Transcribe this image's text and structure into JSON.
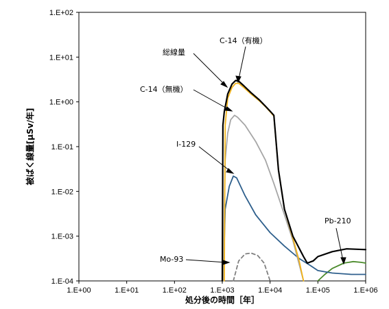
{
  "chart_data": {
    "type": "line",
    "xlabel": "処分後の時間［年］",
    "ylabel": "被ばく線量[μSv/年]",
    "xscale": "log",
    "yscale": "log",
    "xlim": [
      1,
      1000000
    ],
    "ylim": [
      0.0001,
      100
    ],
    "x_tick_labels": [
      "1.E+00",
      "1.E+01",
      "1.E+02",
      "1.E+03",
      "1.E+04",
      "1.E+05",
      "1.E+06"
    ],
    "y_tick_labels": [
      "1.E+02",
      "1.E+01",
      "1.E+00",
      "1.E-01",
      "1.E-02",
      "1.E-03",
      "1.E-04"
    ],
    "grid": false,
    "legend": "none",
    "annotations": [
      "総線量",
      "C-14（有機）",
      "C-14（無機）",
      "I-129",
      "Mo-93",
      "Pb-210"
    ],
    "series": [
      {
        "name": "総線量",
        "color": "#000000",
        "style": "solid",
        "points": [
          [
            1000,
            0.0001
          ],
          [
            1030,
            0.3
          ],
          [
            1100,
            0.6
          ],
          [
            1300,
            1.5
          ],
          [
            1600,
            2.5
          ],
          [
            1900,
            3.0
          ],
          [
            2200,
            2.9
          ],
          [
            2800,
            2.3
          ],
          [
            4000,
            1.6
          ],
          [
            6000,
            1.1
          ],
          [
            8000,
            0.8
          ],
          [
            10000,
            0.62
          ],
          [
            12000,
            0.5
          ],
          [
            15000,
            0.03
          ],
          [
            20000,
            0.004
          ],
          [
            30000,
            0.001
          ],
          [
            50000,
            0.00035
          ],
          [
            60000,
            0.00025
          ],
          [
            80000,
            0.00028
          ],
          [
            100000,
            0.00035
          ],
          [
            200000,
            0.00045
          ],
          [
            400000,
            0.00052
          ],
          [
            1000000,
            0.0005
          ]
        ]
      },
      {
        "name": "C-14（有機）",
        "color": "#f2b31a",
        "style": "solid",
        "points": [
          [
            1100,
            0.0001
          ],
          [
            1150,
            0.3
          ],
          [
            1300,
            1.2
          ],
          [
            1600,
            2.1
          ],
          [
            1900,
            2.6
          ],
          [
            2200,
            2.6
          ],
          [
            2800,
            2.1
          ],
          [
            4000,
            1.5
          ],
          [
            6000,
            1.05
          ],
          [
            8000,
            0.78
          ],
          [
            10000,
            0.6
          ],
          [
            12000,
            0.48
          ],
          [
            15000,
            0.03
          ],
          [
            20000,
            0.004
          ],
          [
            30000,
            0.0009
          ],
          [
            40000,
            0.0003
          ],
          [
            50000,
            0.0001
          ]
        ]
      },
      {
        "name": "C-14（無機）",
        "color": "#a6a6a6",
        "style": "solid",
        "points": [
          [
            1050,
            0.0001
          ],
          [
            1150,
            0.05
          ],
          [
            1300,
            0.2
          ],
          [
            1500,
            0.4
          ],
          [
            1800,
            0.5
          ],
          [
            2100,
            0.45
          ],
          [
            3000,
            0.3
          ],
          [
            5000,
            0.13
          ],
          [
            8000,
            0.05
          ],
          [
            12000,
            0.015
          ],
          [
            20000,
            0.003
          ],
          [
            30000,
            0.0008
          ],
          [
            40000,
            0.00025
          ],
          [
            50000,
            0.0001
          ]
        ]
      },
      {
        "name": "I-129",
        "color": "#2e5f8c",
        "style": "solid",
        "points": [
          [
            1050,
            0.0001
          ],
          [
            1150,
            0.004
          ],
          [
            1400,
            0.013
          ],
          [
            1700,
            0.022
          ],
          [
            2000,
            0.02
          ],
          [
            3000,
            0.008
          ],
          [
            5000,
            0.003
          ],
          [
            10000,
            0.0012
          ],
          [
            20000,
            0.0006
          ],
          [
            40000,
            0.00032
          ],
          [
            70000,
            0.00022
          ],
          [
            100000,
            0.00017
          ],
          [
            200000,
            0.00015
          ],
          [
            500000,
            0.00014
          ],
          [
            1000000,
            0.00014
          ]
        ]
      },
      {
        "name": "Mo-93",
        "color": "#808080",
        "style": "dashed",
        "points": [
          [
            1700,
            0.0001
          ],
          [
            2200,
            0.00028
          ],
          [
            3000,
            0.0004
          ],
          [
            4000,
            0.00042
          ],
          [
            5500,
            0.00037
          ],
          [
            7500,
            0.00025
          ],
          [
            10000,
            0.0001
          ]
        ]
      },
      {
        "name": "Pb-210",
        "color": "#4a8a2a",
        "style": "solid",
        "points": [
          [
            100000,
            0.0001
          ],
          [
            140000,
            0.00014
          ],
          [
            200000,
            0.00019
          ],
          [
            350000,
            0.00025
          ],
          [
            550000,
            0.00027
          ],
          [
            800000,
            0.00026
          ],
          [
            1000000,
            0.00025
          ]
        ]
      }
    ]
  }
}
